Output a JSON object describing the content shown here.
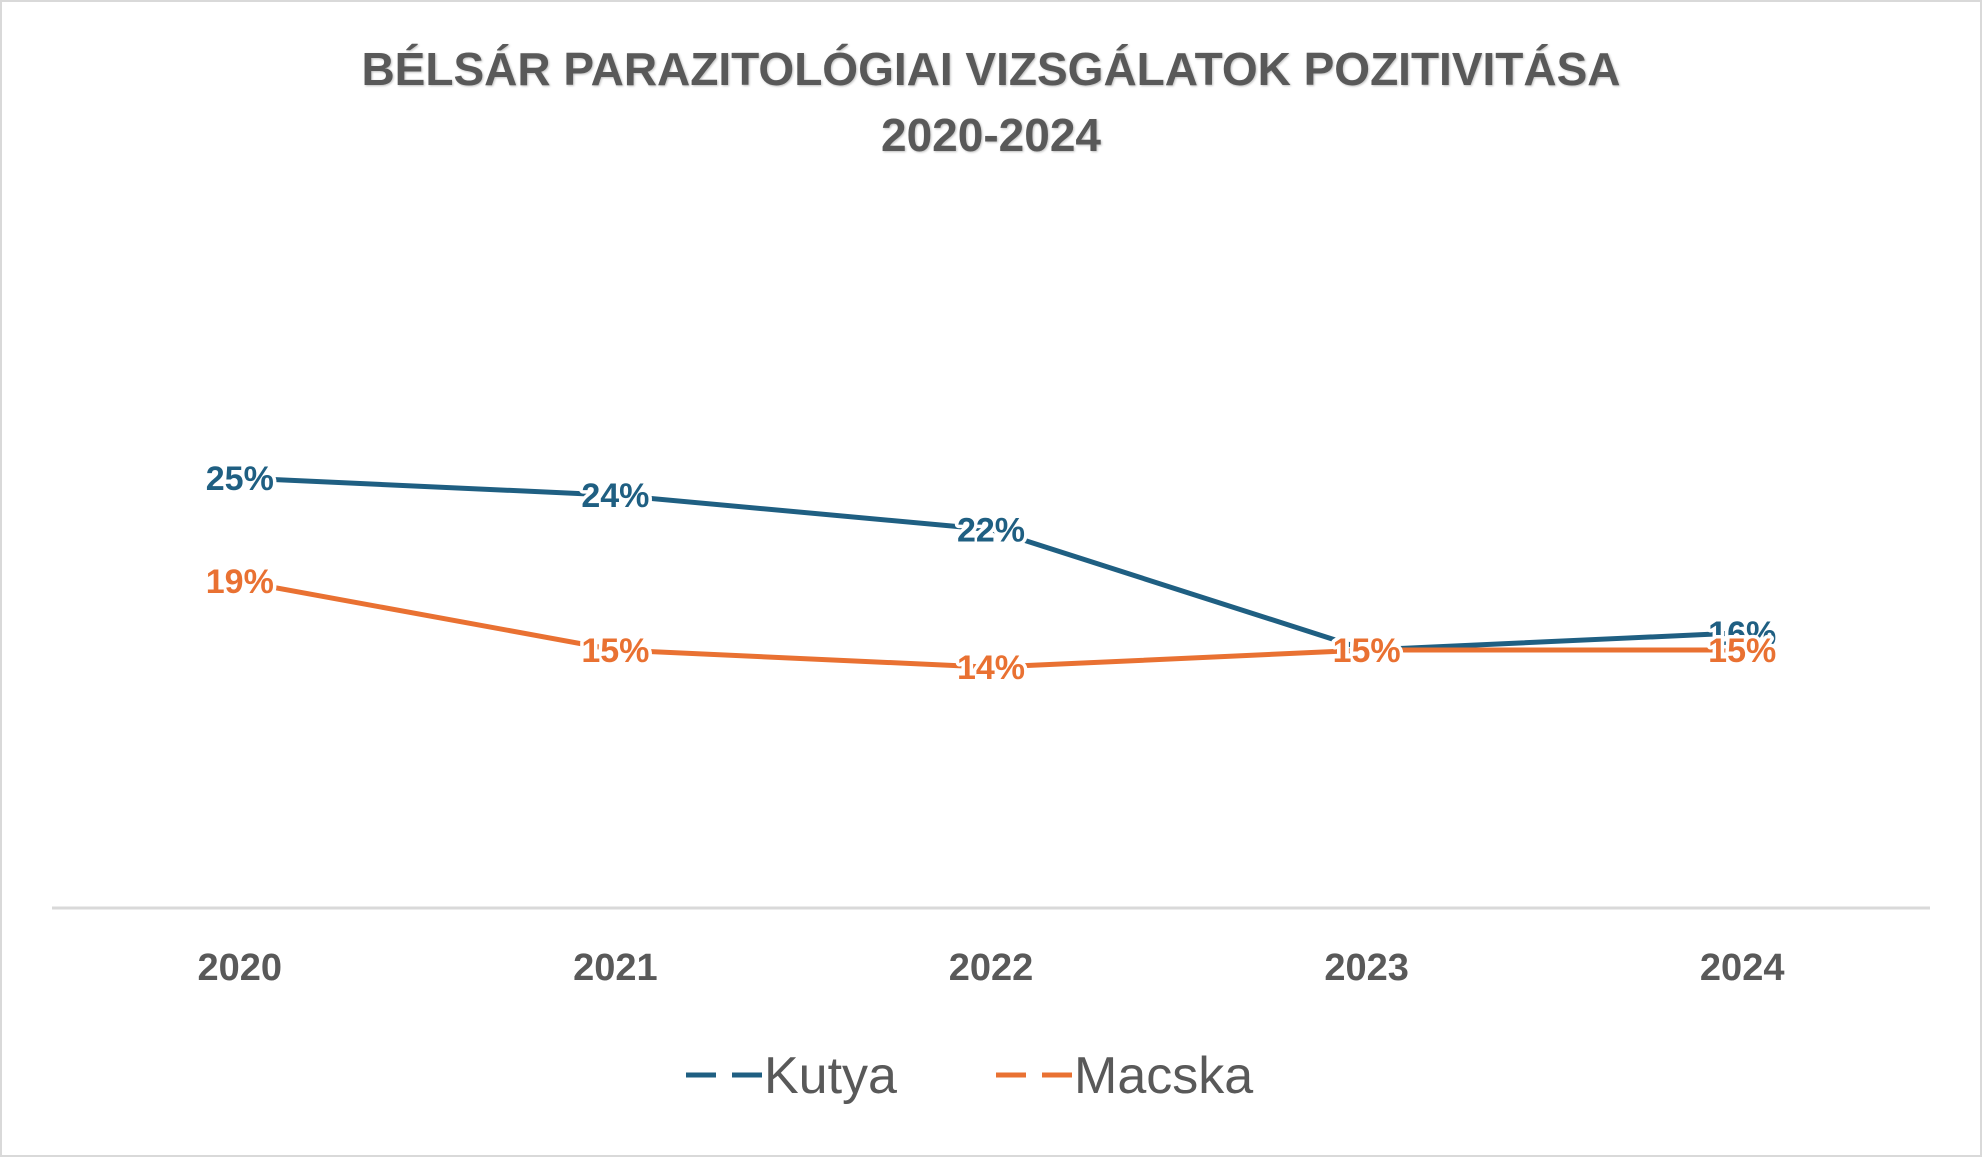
{
  "chart_data": {
    "type": "line",
    "title": [
      "BÉLSÁR PARAZITOLÓGIAI VIZSGÁLATOK POZITIVITÁSA",
      "2020-2024"
    ],
    "categories": [
      "2020",
      "2021",
      "2022",
      "2023",
      "2024"
    ],
    "ylim": [
      0,
      30
    ],
    "grid": false,
    "legend_position": "bottom",
    "series": [
      {
        "name": "Kutya",
        "color": "#1f5f82",
        "values": [
          0.25,
          0.24,
          0.22,
          0.15,
          0.16
        ],
        "labels": [
          "25%",
          "24%",
          "22%",
          "15%",
          "16%"
        ]
      },
      {
        "name": "Macska",
        "color": "#e97132",
        "values": [
          0.19,
          0.15,
          0.14,
          0.15,
          0.15
        ],
        "labels": [
          "19%",
          "15%",
          "14%",
          "15%",
          "15%"
        ]
      }
    ]
  }
}
